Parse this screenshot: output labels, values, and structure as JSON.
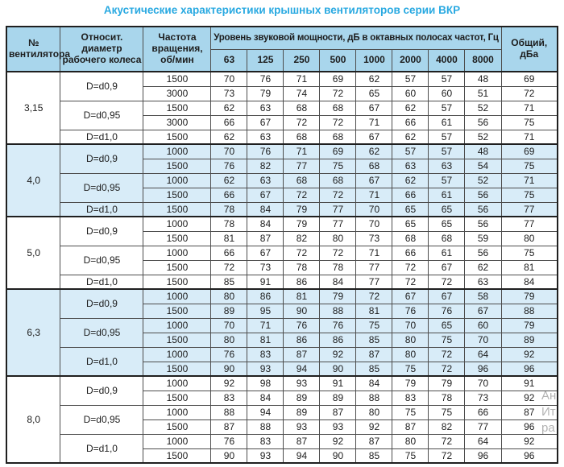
{
  "title": "Акустические характеристики крышных вентиляторов серии ВКР",
  "colors": {
    "title": "#29a9e1",
    "header_bg": "#a9d6ec",
    "band_bg": "#d8ecf8",
    "border": "#4d4d4d"
  },
  "table": {
    "headers": {
      "fan": "№ вентилятора",
      "diameter": "Относит. диаметр рабочего колеса",
      "speed": "Частота вращения, об/мин",
      "octave_group": "Уровень звуковой мощности, дБ в октавных полосах частот, Гц",
      "octaves": [
        "63",
        "125",
        "250",
        "500",
        "1000",
        "2000",
        "4000",
        "8000"
      ],
      "total": "Общий, дБа"
    },
    "groups": [
      {
        "fan": "3,15",
        "shaded": false,
        "subgroups": [
          {
            "diameter": "D=d0,9",
            "rows": [
              {
                "speed": "1500",
                "levels": [
                  70,
                  76,
                  71,
                  69,
                  62,
                  57,
                  57,
                  48
                ],
                "total": 69
              },
              {
                "speed": "3000",
                "levels": [
                  73,
                  79,
                  74,
                  72,
                  65,
                  60,
                  60,
                  51
                ],
                "total": 72
              }
            ]
          },
          {
            "diameter": "D=d0,95",
            "rows": [
              {
                "speed": "1500",
                "levels": [
                  62,
                  63,
                  68,
                  68,
                  67,
                  62,
                  57,
                  52
                ],
                "total": 71
              },
              {
                "speed": "3000",
                "levels": [
                  66,
                  67,
                  72,
                  72,
                  71,
                  66,
                  61,
                  56
                ],
                "total": 75
              }
            ]
          },
          {
            "diameter": "D=d1,0",
            "rows": [
              {
                "speed": "1500",
                "levels": [
                  62,
                  63,
                  68,
                  68,
                  67,
                  62,
                  57,
                  52
                ],
                "total": 71
              }
            ]
          }
        ]
      },
      {
        "fan": "4,0",
        "shaded": true,
        "subgroups": [
          {
            "diameter": "D=d0,9",
            "rows": [
              {
                "speed": "1000",
                "levels": [
                  70,
                  76,
                  71,
                  69,
                  62,
                  57,
                  57,
                  48
                ],
                "total": 69
              },
              {
                "speed": "1500",
                "levels": [
                  76,
                  82,
                  77,
                  75,
                  68,
                  63,
                  63,
                  54
                ],
                "total": 75
              }
            ]
          },
          {
            "diameter": "D=d0,95",
            "rows": [
              {
                "speed": "1000",
                "levels": [
                  62,
                  63,
                  68,
                  68,
                  67,
                  62,
                  57,
                  52
                ],
                "total": 71
              },
              {
                "speed": "1500",
                "levels": [
                  66,
                  67,
                  72,
                  72,
                  71,
                  66,
                  61,
                  56
                ],
                "total": 75
              }
            ]
          },
          {
            "diameter": "D=d1,0",
            "rows": [
              {
                "speed": "1500",
                "levels": [
                  78,
                  84,
                  79,
                  77,
                  70,
                  65,
                  65,
                  56
                ],
                "total": 77
              }
            ]
          }
        ]
      },
      {
        "fan": "5,0",
        "shaded": false,
        "subgroups": [
          {
            "diameter": "D=d0,9",
            "rows": [
              {
                "speed": "1000",
                "levels": [
                  78,
                  84,
                  79,
                  77,
                  70,
                  65,
                  65,
                  56
                ],
                "total": 77
              },
              {
                "speed": "1500",
                "levels": [
                  81,
                  87,
                  82,
                  80,
                  73,
                  68,
                  68,
                  59
                ],
                "total": 80
              }
            ]
          },
          {
            "diameter": "D=d0,95",
            "rows": [
              {
                "speed": "1000",
                "levels": [
                  66,
                  67,
                  72,
                  72,
                  71,
                  66,
                  61,
                  56
                ],
                "total": 75
              },
              {
                "speed": "1500",
                "levels": [
                  72,
                  73,
                  78,
                  78,
                  77,
                  72,
                  67,
                  62
                ],
                "total": 81
              }
            ]
          },
          {
            "diameter": "D=d1,0",
            "rows": [
              {
                "speed": "1500",
                "levels": [
                  85,
                  91,
                  86,
                  84,
                  77,
                  72,
                  72,
                  63
                ],
                "total": 84
              }
            ]
          }
        ]
      },
      {
        "fan": "6,3",
        "shaded": true,
        "subgroups": [
          {
            "diameter": "D=d0,9",
            "rows": [
              {
                "speed": "1000",
                "levels": [
                  80,
                  86,
                  81,
                  79,
                  72,
                  67,
                  67,
                  58
                ],
                "total": 79
              },
              {
                "speed": "1500",
                "levels": [
                  89,
                  95,
                  90,
                  88,
                  81,
                  76,
                  76,
                  67
                ],
                "total": 88
              }
            ]
          },
          {
            "diameter": "D=d0,95",
            "rows": [
              {
                "speed": "1000",
                "levels": [
                  70,
                  71,
                  76,
                  76,
                  75,
                  70,
                  65,
                  60
                ],
                "total": 79
              },
              {
                "speed": "1500",
                "levels": [
                  80,
                  81,
                  86,
                  86,
                  85,
                  80,
                  75,
                  70
                ],
                "total": 89
              }
            ]
          },
          {
            "diameter": "D=d1,0",
            "rows": [
              {
                "speed": "1000",
                "levels": [
                  76,
                  83,
                  87,
                  92,
                  87,
                  80,
                  72,
                  64
                ],
                "total": 92
              },
              {
                "speed": "1500",
                "levels": [
                  90,
                  93,
                  94,
                  90,
                  85,
                  75,
                  72,
                  96
                ],
                "total": 96
              }
            ]
          }
        ]
      },
      {
        "fan": "8,0",
        "shaded": false,
        "subgroups": [
          {
            "diameter": "D=d0,9",
            "rows": [
              {
                "speed": "1000",
                "levels": [
                  92,
                  98,
                  93,
                  91,
                  84,
                  79,
                  79,
                  70
                ],
                "total": 91
              },
              {
                "speed": "1500",
                "levels": [
                  83,
                  84,
                  89,
                  89,
                  88,
                  83,
                  78,
                  73
                ],
                "total": 92
              }
            ]
          },
          {
            "diameter": "D=d0,95",
            "rows": [
              {
                "speed": "1000",
                "levels": [
                  88,
                  94,
                  89,
                  87,
                  80,
                  75,
                  75,
                  66
                ],
                "total": 87
              },
              {
                "speed": "1500",
                "levels": [
                  87,
                  88,
                  93,
                  93,
                  92,
                  87,
                  82,
                  77
                ],
                "total": 96
              }
            ]
          },
          {
            "diameter": "D=d1,0",
            "rows": [
              {
                "speed": "1000",
                "levels": [
                  76,
                  83,
                  87,
                  92,
                  87,
                  80,
                  72,
                  64
                ],
                "total": 92
              },
              {
                "speed": "1500",
                "levels": [
                  90,
                  93,
                  94,
                  90,
                  85,
                  75,
                  72,
                  96
                ],
                "total": 96
              }
            ]
          }
        ]
      }
    ]
  },
  "watermark": {
    "lines": [
      "Ан",
      "Ит",
      "ра"
    ]
  }
}
